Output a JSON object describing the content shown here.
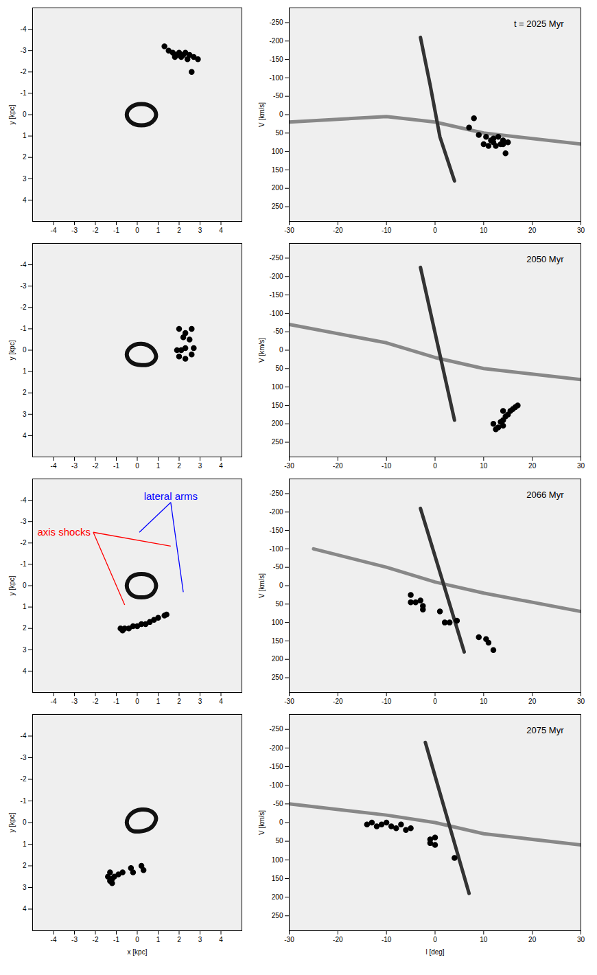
{
  "chart_data": [
    {
      "type": "scatter",
      "y_label": "y [kpc]",
      "xlim": [
        -5,
        5
      ],
      "ylim": [
        -5,
        5
      ],
      "xticks": [
        -4,
        -3,
        -2,
        -1,
        0,
        1,
        2,
        3,
        4
      ],
      "yticks": [
        -4,
        -3,
        -2,
        -1,
        0,
        1,
        2,
        3,
        4
      ],
      "x": [
        1.3,
        1.5,
        1.7,
        1.8,
        1.9,
        2.0,
        2.1,
        2.2,
        2.3,
        2.4,
        2.5,
        2.7,
        2.9,
        2.6
      ],
      "y": [
        -3.2,
        -3.0,
        -2.9,
        -2.7,
        -2.8,
        -2.9,
        -2.7,
        -2.8,
        -2.9,
        -2.6,
        -2.8,
        -2.7,
        -2.6,
        -2.0
      ],
      "color": "#000000",
      "marker": "circle",
      "lines": [
        {
          "color": "#111111",
          "x": [
            0.9,
            0.7,
            0.2,
            -0.3,
            -0.5,
            -0.3,
            0.2,
            0.7
          ],
          "y": [
            0.0,
            0.35,
            0.5,
            0.35,
            0.0,
            -0.35,
            -0.5,
            -0.35
          ]
        }
      ]
    },
    {
      "type": "scatter",
      "y_label": "V [km/s]",
      "title": "t = 2025 Myr",
      "xlim": [
        -30,
        30
      ],
      "ylim": [
        -290,
        290
      ],
      "xticks": [
        -30,
        -20,
        -10,
        0,
        10,
        20,
        30
      ],
      "yticks": [
        -250,
        -200,
        -150,
        -100,
        -50,
        0,
        50,
        100,
        150,
        200,
        250
      ],
      "x": [
        7,
        8,
        9,
        10,
        10.5,
        11,
        11.5,
        12,
        12.5,
        13,
        13.5,
        14,
        14.5,
        15,
        14,
        12
      ],
      "y": [
        35,
        10,
        55,
        80,
        60,
        85,
        70,
        65,
        85,
        60,
        80,
        70,
        105,
        75,
        80,
        75
      ],
      "color": "#000000",
      "marker": "circle",
      "lines": [
        {
          "color": "#888888",
          "x": [
            -30,
            -10,
            0,
            10,
            30
          ],
          "y": [
            20,
            5,
            20,
            50,
            80
          ]
        },
        {
          "color": "#333333",
          "x": [
            -3,
            -1,
            1,
            4
          ],
          "y": [
            -210,
            -80,
            60,
            180
          ]
        }
      ]
    },
    {
      "type": "scatter",
      "y_label": "y [kpc]",
      "xlim": [
        -5,
        5
      ],
      "ylim": [
        -5,
        5
      ],
      "xticks": [
        -4,
        -3,
        -2,
        -1,
        0,
        1,
        2,
        3,
        4
      ],
      "yticks": [
        -4,
        -3,
        -2,
        -1,
        0,
        1,
        2,
        3,
        4
      ],
      "x": [
        2.0,
        2.3,
        2.6,
        2.2,
        2.5,
        1.9,
        2.1,
        2.3,
        2.0,
        2.3,
        2.6,
        2.7
      ],
      "y": [
        -1.0,
        -0.8,
        -1.0,
        -0.6,
        -0.5,
        0.0,
        0.0,
        -0.1,
        0.3,
        0.4,
        0.2,
        -0.1
      ],
      "color": "#000000",
      "marker": "circle",
      "lines": [
        {
          "color": "#111111",
          "x": [
            0.9,
            0.7,
            0.2,
            -0.3,
            -0.5,
            -0.3,
            0.2,
            0.7
          ],
          "y": [
            0.3,
            0.6,
            0.7,
            0.55,
            0.2,
            -0.15,
            -0.3,
            -0.1
          ]
        }
      ]
    },
    {
      "type": "scatter",
      "y_label": "V [km/s]",
      "title": "2050 Myr",
      "xlim": [
        -30,
        30
      ],
      "ylim": [
        -290,
        290
      ],
      "xticks": [
        -30,
        -20,
        -10,
        0,
        10,
        20,
        30
      ],
      "yticks": [
        -250,
        -200,
        -150,
        -100,
        -50,
        0,
        50,
        100,
        150,
        200,
        250
      ],
      "x": [
        12,
        12.5,
        13,
        13.5,
        14,
        14,
        14.5,
        15,
        15.5,
        16,
        16.5,
        17,
        14
      ],
      "y": [
        200,
        215,
        210,
        195,
        190,
        205,
        180,
        175,
        165,
        160,
        155,
        150,
        165
      ],
      "color": "#000000",
      "marker": "circle",
      "lines": [
        {
          "color": "#888888",
          "x": [
            -30,
            -10,
            0,
            10,
            30
          ],
          "y": [
            -70,
            -20,
            20,
            50,
            80
          ]
        },
        {
          "color": "#333333",
          "x": [
            -3,
            4
          ],
          "y": [
            -225,
            190
          ]
        }
      ]
    },
    {
      "type": "scatter",
      "y_label": "y [kpc]",
      "xlim": [
        -5,
        5
      ],
      "ylim": [
        -5,
        5
      ],
      "xticks": [
        -4,
        -3,
        -2,
        -1,
        0,
        1,
        2,
        3,
        4
      ],
      "yticks": [
        -4,
        -3,
        -2,
        -1,
        0,
        1,
        2,
        3,
        4
      ],
      "x": [
        -0.8,
        -0.7,
        -0.6,
        -0.4,
        -0.2,
        0.0,
        0.2,
        0.4,
        0.6,
        0.8,
        1.0,
        1.3,
        1.4
      ],
      "y": [
        2.0,
        2.1,
        2.0,
        2.0,
        1.9,
        1.9,
        1.8,
        1.8,
        1.7,
        1.6,
        1.5,
        1.4,
        1.35
      ],
      "color": "#000000",
      "marker": "circle",
      "lines": [
        {
          "color": "#111111",
          "x": [
            0.9,
            0.7,
            0.2,
            -0.3,
            -0.5,
            -0.3,
            0.2,
            0.7
          ],
          "y": [
            0.0,
            0.4,
            0.55,
            0.4,
            0.0,
            -0.4,
            -0.55,
            -0.4
          ]
        }
      ],
      "annotations": [
        {
          "text": "axis shocks",
          "color": "#ff0000",
          "x": -2.1,
          "y": -2.5,
          "targets": [
            [
              1.6,
              -1.85
            ],
            [
              -0.6,
              0.9
            ]
          ]
        },
        {
          "text": "lateral arms",
          "color": "#0000ff",
          "x": 1.6,
          "y": -3.9,
          "targets": [
            [
              0.1,
              -2.5
            ],
            [
              2.2,
              0.3
            ]
          ]
        }
      ]
    },
    {
      "type": "scatter",
      "y_label": "V [km/s]",
      "title": "2066 Myr",
      "xlim": [
        -30,
        30
      ],
      "ylim": [
        -290,
        290
      ],
      "xticks": [
        -30,
        -20,
        -10,
        0,
        10,
        20,
        30
      ],
      "yticks": [
        -250,
        -200,
        -150,
        -100,
        -50,
        0,
        50,
        100,
        150,
        200,
        250
      ],
      "x": [
        -5,
        -5,
        -4,
        -3,
        -2.5,
        -2.5,
        1,
        2,
        3,
        4.5,
        9,
        10.5,
        11,
        12
      ],
      "y": [
        25,
        45,
        45,
        40,
        55,
        65,
        70,
        100,
        100,
        95,
        140,
        145,
        155,
        175
      ],
      "color": "#000000",
      "marker": "circle",
      "lines": [
        {
          "color": "#888888",
          "x": [
            -25,
            -10,
            0,
            10,
            30
          ],
          "y": [
            -100,
            -50,
            -10,
            20,
            70
          ]
        },
        {
          "color": "#333333",
          "x": [
            -3,
            6
          ],
          "y": [
            -210,
            180
          ]
        }
      ]
    },
    {
      "type": "scatter",
      "x_label": "x [kpc]",
      "y_label": "y [kpc]",
      "xlim": [
        -5,
        5
      ],
      "ylim": [
        -5,
        5
      ],
      "xticks": [
        -4,
        -3,
        -2,
        -1,
        0,
        1,
        2,
        3,
        4
      ],
      "yticks": [
        -4,
        -3,
        -2,
        -1,
        0,
        1,
        2,
        3,
        4
      ],
      "x": [
        -1.3,
        -1.4,
        -1.2,
        -1.3,
        -1.1,
        -0.9,
        -0.7,
        -0.3,
        -0.2,
        0.2,
        0.3,
        -1.2
      ],
      "y": [
        2.3,
        2.5,
        2.6,
        2.7,
        2.5,
        2.4,
        2.3,
        2.1,
        2.3,
        2.0,
        2.2,
        2.8
      ],
      "color": "#000000",
      "marker": "circle",
      "lines": [
        {
          "color": "#111111",
          "x": [
            0.9,
            0.7,
            0.2,
            -0.3,
            -0.5,
            -0.3,
            0.2,
            0.7
          ],
          "y": [
            -0.2,
            0.2,
            0.4,
            0.35,
            0.0,
            -0.4,
            -0.6,
            -0.5
          ]
        }
      ]
    },
    {
      "type": "scatter",
      "x_label": "l [deg]",
      "y_label": "V [km/s]",
      "title": "2075 Myr",
      "xlim": [
        -30,
        30
      ],
      "ylim": [
        -290,
        290
      ],
      "xticks": [
        -30,
        -20,
        -10,
        0,
        10,
        20,
        30
      ],
      "yticks": [
        -250,
        -200,
        -150,
        -100,
        -50,
        0,
        50,
        100,
        150,
        200,
        250
      ],
      "x": [
        -14,
        -13,
        -12,
        -11,
        -10,
        -9,
        -8,
        -7,
        -6,
        -5,
        -1,
        0,
        0,
        4,
        -1
      ],
      "y": [
        5,
        0,
        10,
        5,
        0,
        10,
        15,
        5,
        20,
        15,
        45,
        40,
        60,
        95,
        55
      ],
      "color": "#000000",
      "marker": "circle",
      "lines": [
        {
          "color": "#888888",
          "x": [
            -30,
            -10,
            0,
            10,
            30
          ],
          "y": [
            -50,
            -20,
            0,
            30,
            60
          ]
        },
        {
          "color": "#333333",
          "x": [
            -2,
            7
          ],
          "y": [
            -215,
            190
          ]
        }
      ]
    }
  ]
}
